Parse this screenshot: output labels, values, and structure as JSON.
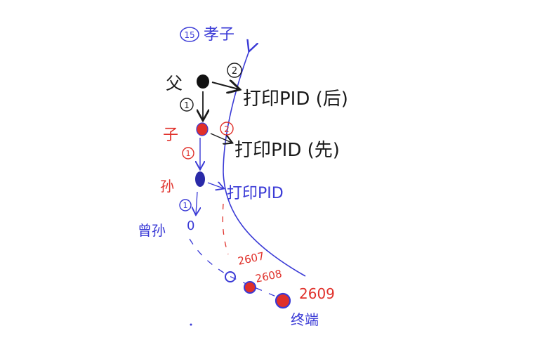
{
  "colors": {
    "black": "#1a1a1a",
    "red": "#e0302a",
    "blue": "#3a3ad6",
    "background": "#ffffff"
  },
  "labels": {
    "title_number": "15",
    "title_text": "孝子",
    "father": "父",
    "son": "子",
    "grandson": "孙",
    "great_grandson": "曾孙",
    "great_grandson_value": "0",
    "step_black_1": "1",
    "step_black_2": "2",
    "step_red_1": "1",
    "step_red_2": "2",
    "step_blue_1": "1",
    "print_father": "打印PID (后)",
    "print_son": "打印PID (先)",
    "print_grandson": "打印PID",
    "pid_2607": "2607",
    "pid_2608": "2608",
    "pid_2609": "2609",
    "terminal": "终端"
  }
}
